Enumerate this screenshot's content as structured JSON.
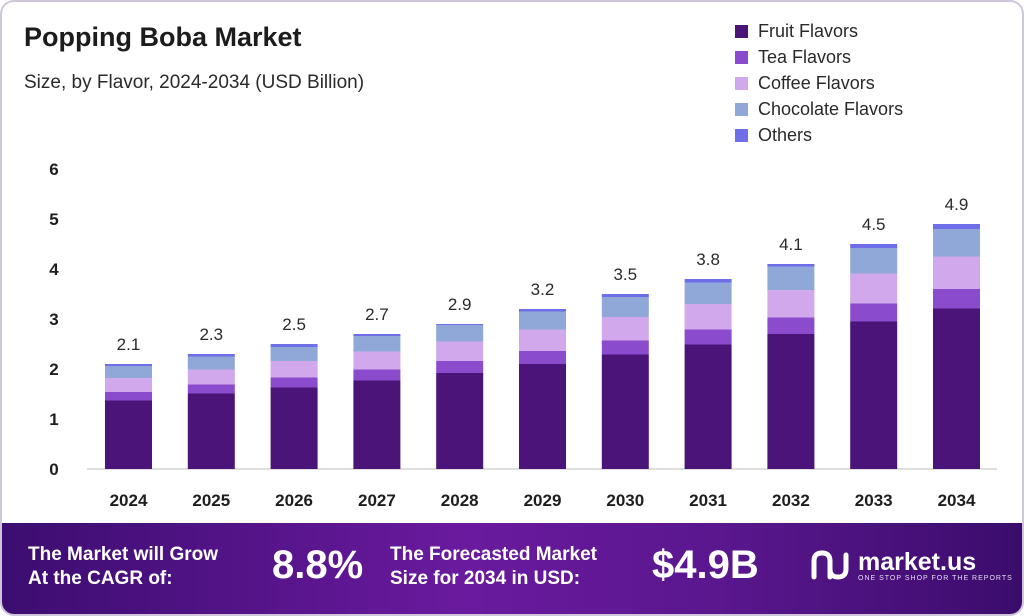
{
  "title": "Popping Boba Market",
  "subtitle": "Size, by Flavor, 2024-2034 (USD Billion)",
  "colors": {
    "fruit": "#4a1478",
    "tea": "#8a4ccc",
    "coffee": "#d1a8ec",
    "chocolate": "#8fa8d8",
    "others": "#6e6ee8"
  },
  "chart_data": {
    "type": "bar",
    "stacked": true,
    "categories": [
      "2024",
      "2025",
      "2026",
      "2027",
      "2028",
      "2029",
      "2030",
      "2031",
      "2032",
      "2033",
      "2034"
    ],
    "series": [
      {
        "name": "Fruit Flavors",
        "values": [
          1.37,
          1.51,
          1.63,
          1.77,
          1.92,
          2.1,
          2.29,
          2.49,
          2.7,
          2.95,
          3.21
        ]
      },
      {
        "name": "Tea Flavors",
        "values": [
          0.17,
          0.18,
          0.2,
          0.22,
          0.24,
          0.26,
          0.28,
          0.3,
          0.33,
          0.36,
          0.39
        ]
      },
      {
        "name": "Coffee Flavors",
        "values": [
          0.28,
          0.3,
          0.33,
          0.36,
          0.39,
          0.43,
          0.47,
          0.51,
          0.55,
          0.6,
          0.65
        ]
      },
      {
        "name": "Chocolate Flavors",
        "values": [
          0.24,
          0.26,
          0.28,
          0.31,
          0.33,
          0.36,
          0.4,
          0.43,
          0.47,
          0.51,
          0.55
        ]
      },
      {
        "name": "Others",
        "values": [
          0.04,
          0.05,
          0.06,
          0.04,
          0.02,
          0.05,
          0.06,
          0.07,
          0.05,
          0.08,
          0.1
        ]
      }
    ],
    "totals": [
      2.1,
      2.3,
      2.5,
      2.7,
      2.9,
      3.2,
      3.5,
      3.8,
      4.1,
      4.5,
      4.9
    ],
    "total_labels": [
      "2.1",
      "2.3",
      "2.5",
      "2.7",
      "2.9",
      "3.2",
      "3.5",
      "3.8",
      "4.1",
      "4.5",
      "4.9"
    ],
    "ylim": [
      0,
      6
    ],
    "yticks": [
      "0",
      "1",
      "2",
      "3",
      "4",
      "5",
      "6"
    ],
    "grid": false,
    "legend_position": "top-right"
  },
  "footer": {
    "cagr_text_line1": "The Market will Grow",
    "cagr_text_line2": "At the CAGR of:",
    "cagr_value": "8.8%",
    "forecast_text_line1": "The Forecasted Market",
    "forecast_text_line2": "Size for 2034 in USD:",
    "forecast_value": "$4.9B",
    "logo_name": "market.us",
    "logo_tagline": "ONE STOP SHOP FOR THE REPORTS"
  }
}
